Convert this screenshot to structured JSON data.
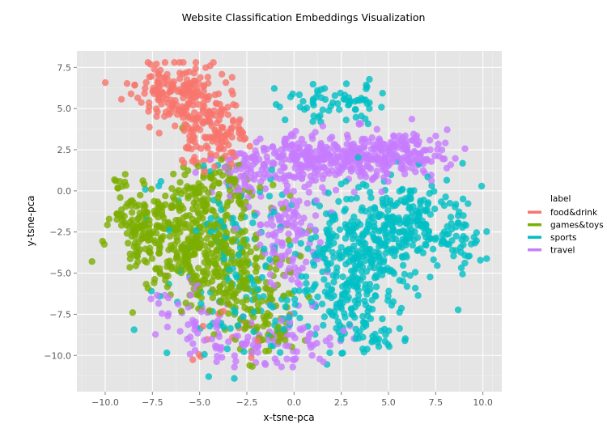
{
  "chart_data": {
    "type": "scatter",
    "title": "Website Classification Embeddings Visualization",
    "xlabel": "x-tsne-pca",
    "ylabel": "y-tsne-pca",
    "xlim": [
      -11.5,
      11
    ],
    "ylim": [
      -12.2,
      8.5
    ],
    "xticks": [
      -10,
      -7.5,
      -5,
      -2.5,
      0,
      2.5,
      5,
      7.5,
      10
    ],
    "xtick_labels": [
      "−10.0",
      "−7.5",
      "−5.0",
      "−2.5",
      "0.0",
      "2.5",
      "5.0",
      "7.5",
      "10.0"
    ],
    "yticks": [
      7.5,
      5,
      2.5,
      0,
      -2.5,
      -5,
      -7.5,
      -10
    ],
    "ytick_labels": [
      "7.5",
      "5.0",
      "2.5",
      "0.0",
      "−2.5",
      "−5.0",
      "−7.5",
      "−10.0"
    ],
    "grid": true,
    "legend_position": "right",
    "legend_title": "label",
    "series": [
      {
        "name": "food&drink",
        "color": "#F8766D",
        "clusters": [
          {
            "cx": -6.5,
            "cy": 6.2,
            "sx": 1.0,
            "sy": 0.9,
            "n": 140
          },
          {
            "cx": -4.6,
            "cy": 4.6,
            "sx": 0.9,
            "sy": 1.2,
            "n": 110
          },
          {
            "cx": -4.3,
            "cy": 2.4,
            "sx": 0.8,
            "sy": 0.7,
            "n": 45
          },
          {
            "cx": -3.2,
            "cy": 3.6,
            "sx": 0.6,
            "sy": 0.6,
            "n": 22
          },
          {
            "cx": -3.5,
            "cy": -8.5,
            "sx": 1.2,
            "sy": 1.0,
            "n": 14
          }
        ]
      },
      {
        "name": "games&toys",
        "color": "#7CAE00",
        "clusters": [
          {
            "cx": -5.5,
            "cy": -2.8,
            "sx": 1.7,
            "sy": 1.7,
            "n": 340
          },
          {
            "cx": -8.3,
            "cy": -2.2,
            "sx": 0.8,
            "sy": 1.0,
            "n": 70
          },
          {
            "cx": -3.0,
            "cy": -5.4,
            "sx": 1.3,
            "sy": 1.6,
            "n": 160
          },
          {
            "cx": -1.5,
            "cy": -8.2,
            "sx": 1.0,
            "sy": 1.0,
            "n": 50
          },
          {
            "cx": -3.7,
            "cy": 0.3,
            "sx": 1.2,
            "sy": 0.8,
            "n": 60
          },
          {
            "cx": -9.2,
            "cy": 0.6,
            "sx": 0.2,
            "sy": 0.3,
            "n": 8
          }
        ]
      },
      {
        "name": "sports",
        "color": "#00BFC4",
        "clusters": [
          {
            "cx": 4.0,
            "cy": -3.3,
            "sx": 1.8,
            "sy": 1.7,
            "n": 300
          },
          {
            "cx": 6.3,
            "cy": -1.8,
            "sx": 1.4,
            "sy": 1.4,
            "n": 130
          },
          {
            "cx": 2.7,
            "cy": -6.6,
            "sx": 0.9,
            "sy": 1.4,
            "n": 90
          },
          {
            "cx": 1.6,
            "cy": 5.2,
            "sx": 1.1,
            "sy": 0.5,
            "n": 45
          },
          {
            "cx": 3.6,
            "cy": 5.7,
            "sx": 0.6,
            "sy": 0.6,
            "n": 22
          },
          {
            "cx": 8.8,
            "cy": -2.8,
            "sx": 0.7,
            "sy": 1.0,
            "n": 35
          },
          {
            "cx": -1.5,
            "cy": -6.2,
            "sx": 2.3,
            "sy": 2.2,
            "n": 100
          },
          {
            "cx": -3.8,
            "cy": -1.6,
            "sx": 1.8,
            "sy": 1.8,
            "n": 55
          },
          {
            "cx": 4.5,
            "cy": -8.7,
            "sx": 0.9,
            "sy": 0.5,
            "n": 25
          }
        ]
      },
      {
        "name": "travel",
        "color": "#C77CFF",
        "clusters": [
          {
            "cx": 0.6,
            "cy": 1.9,
            "sx": 1.5,
            "sy": 0.8,
            "n": 200
          },
          {
            "cx": 3.6,
            "cy": 2.1,
            "sx": 1.2,
            "sy": 0.7,
            "n": 150
          },
          {
            "cx": 6.3,
            "cy": 2.3,
            "sx": 1.0,
            "sy": 0.8,
            "n": 90
          },
          {
            "cx": -0.3,
            "cy": -3.0,
            "sx": 0.9,
            "sy": 1.7,
            "n": 100
          },
          {
            "cx": -1.4,
            "cy": -9.3,
            "sx": 2.0,
            "sy": 0.8,
            "n": 90
          },
          {
            "cx": -2.3,
            "cy": 0.8,
            "sx": 1.0,
            "sy": 0.9,
            "n": 60
          },
          {
            "cx": -5.3,
            "cy": -7.6,
            "sx": 1.3,
            "sy": 1.0,
            "n": 45
          }
        ]
      }
    ]
  }
}
